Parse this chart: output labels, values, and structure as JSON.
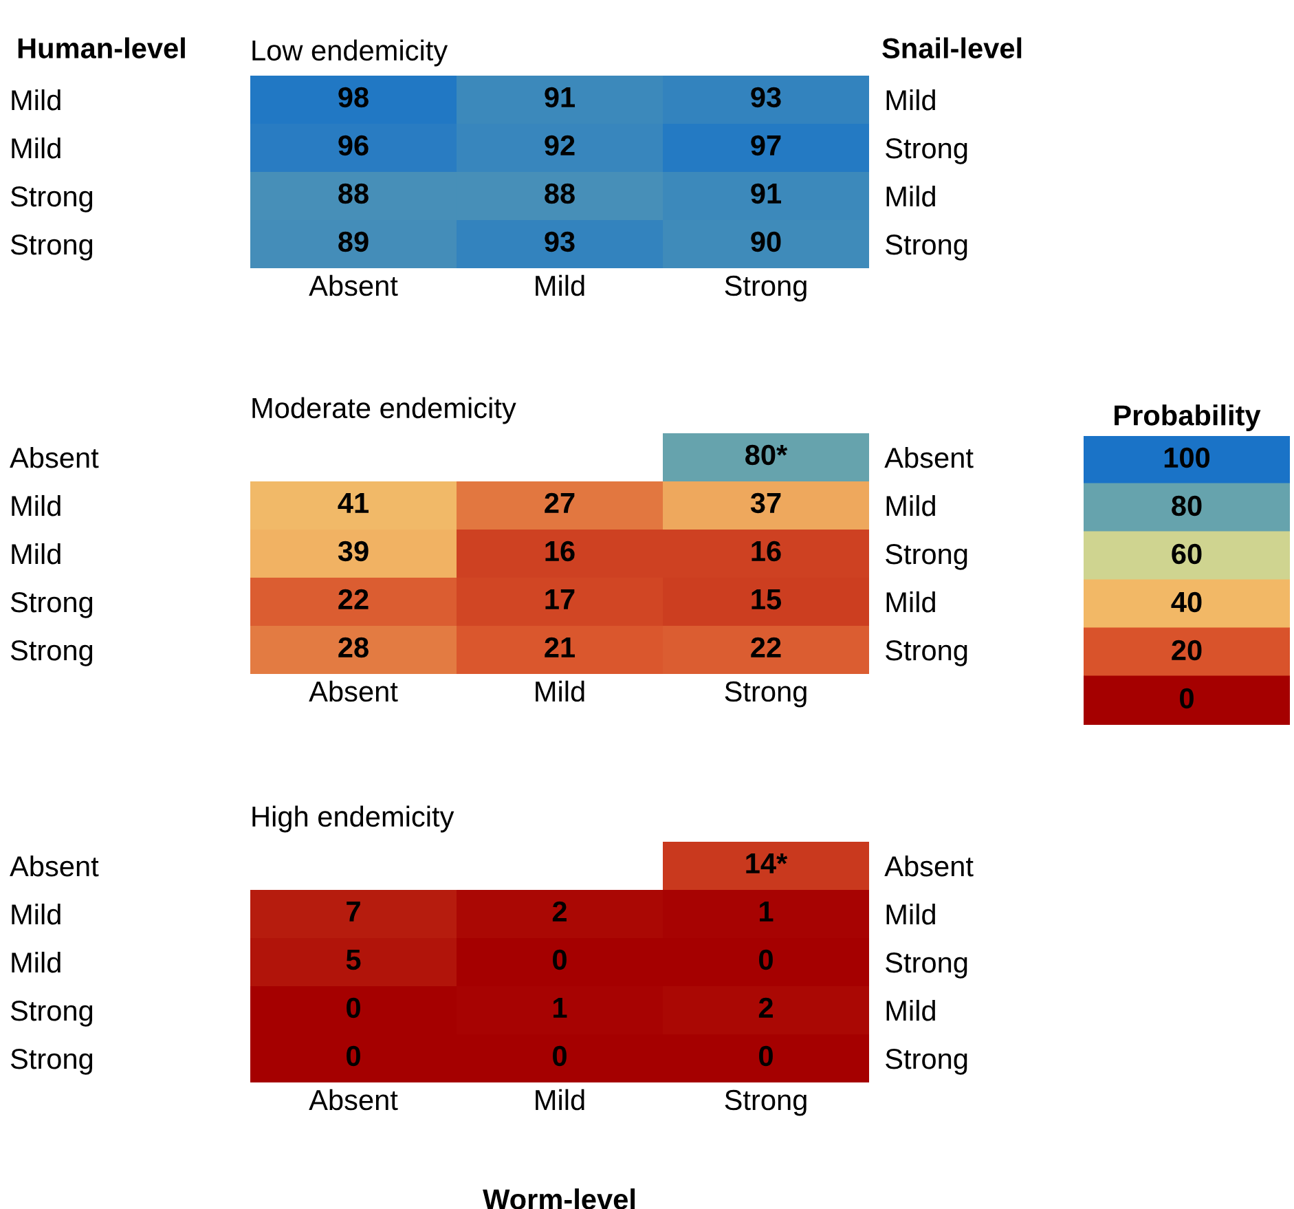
{
  "chart_data": [
    {
      "type": "heatmap",
      "title": "Low endemicity",
      "ylabel": "Human-level",
      "y2label": "Snail-level",
      "data_labels": true,
      "categories": [
        "Absent",
        "Mild",
        "Strong"
      ],
      "y_categories": [
        "Mild",
        "Mild",
        "Strong",
        "Strong"
      ],
      "y2_categories": [
        "Mild",
        "Strong",
        "Mild",
        "Strong"
      ],
      "cells": [
        [
          98,
          91,
          93
        ],
        [
          96,
          92,
          97
        ],
        [
          88,
          88,
          91
        ],
        [
          89,
          93,
          90
        ]
      ]
    },
    {
      "type": "heatmap",
      "title": "Moderate endemicity",
      "clabel": "Probability",
      "clim": [
        0,
        100
      ],
      "cticks": [
        0,
        20,
        40,
        60,
        80,
        100
      ],
      "categories": [
        "Absent",
        "Mild",
        "Strong"
      ],
      "y_categories": [
        "Absent",
        "Mild",
        "Mild",
        "Strong",
        "Strong"
      ],
      "y2_categories": [
        "Absent",
        "Mild",
        "Strong",
        "Mild",
        "Strong"
      ],
      "cells": [
        [
          null,
          null,
          80
        ],
        [
          41,
          27,
          37
        ],
        [
          39,
          16,
          16
        ],
        [
          22,
          17,
          15
        ],
        [
          28,
          21,
          22
        ]
      ],
      "cell_labels": [
        [
          null,
          null,
          "80*"
        ],
        [
          "41",
          "27",
          "37"
        ],
        [
          "39",
          "16",
          "16"
        ],
        [
          "22",
          "17",
          "15"
        ],
        [
          "28",
          "21",
          "22"
        ]
      ]
    },
    {
      "type": "heatmap",
      "title": "High endemicity",
      "xlabel": "Worm-level",
      "categories": [
        "Absent",
        "Mild",
        "Strong"
      ],
      "y_categories": [
        "Absent",
        "Mild",
        "Mild",
        "Strong",
        "Strong"
      ],
      "y2_categories": [
        "Absent",
        "Mild",
        "Strong",
        "Mild",
        "Strong"
      ],
      "cells": [
        [
          null,
          null,
          14
        ],
        [
          7,
          2,
          1
        ],
        [
          5,
          0,
          0
        ],
        [
          0,
          1,
          2
        ],
        [
          0,
          0,
          0
        ]
      ],
      "cell_labels": [
        [
          null,
          null,
          "14*"
        ],
        [
          "7",
          "2",
          "1"
        ],
        [
          "5",
          "0",
          "0"
        ],
        [
          "0",
          "1",
          "2"
        ],
        [
          "0",
          "0",
          "0"
        ]
      ]
    }
  ]
}
